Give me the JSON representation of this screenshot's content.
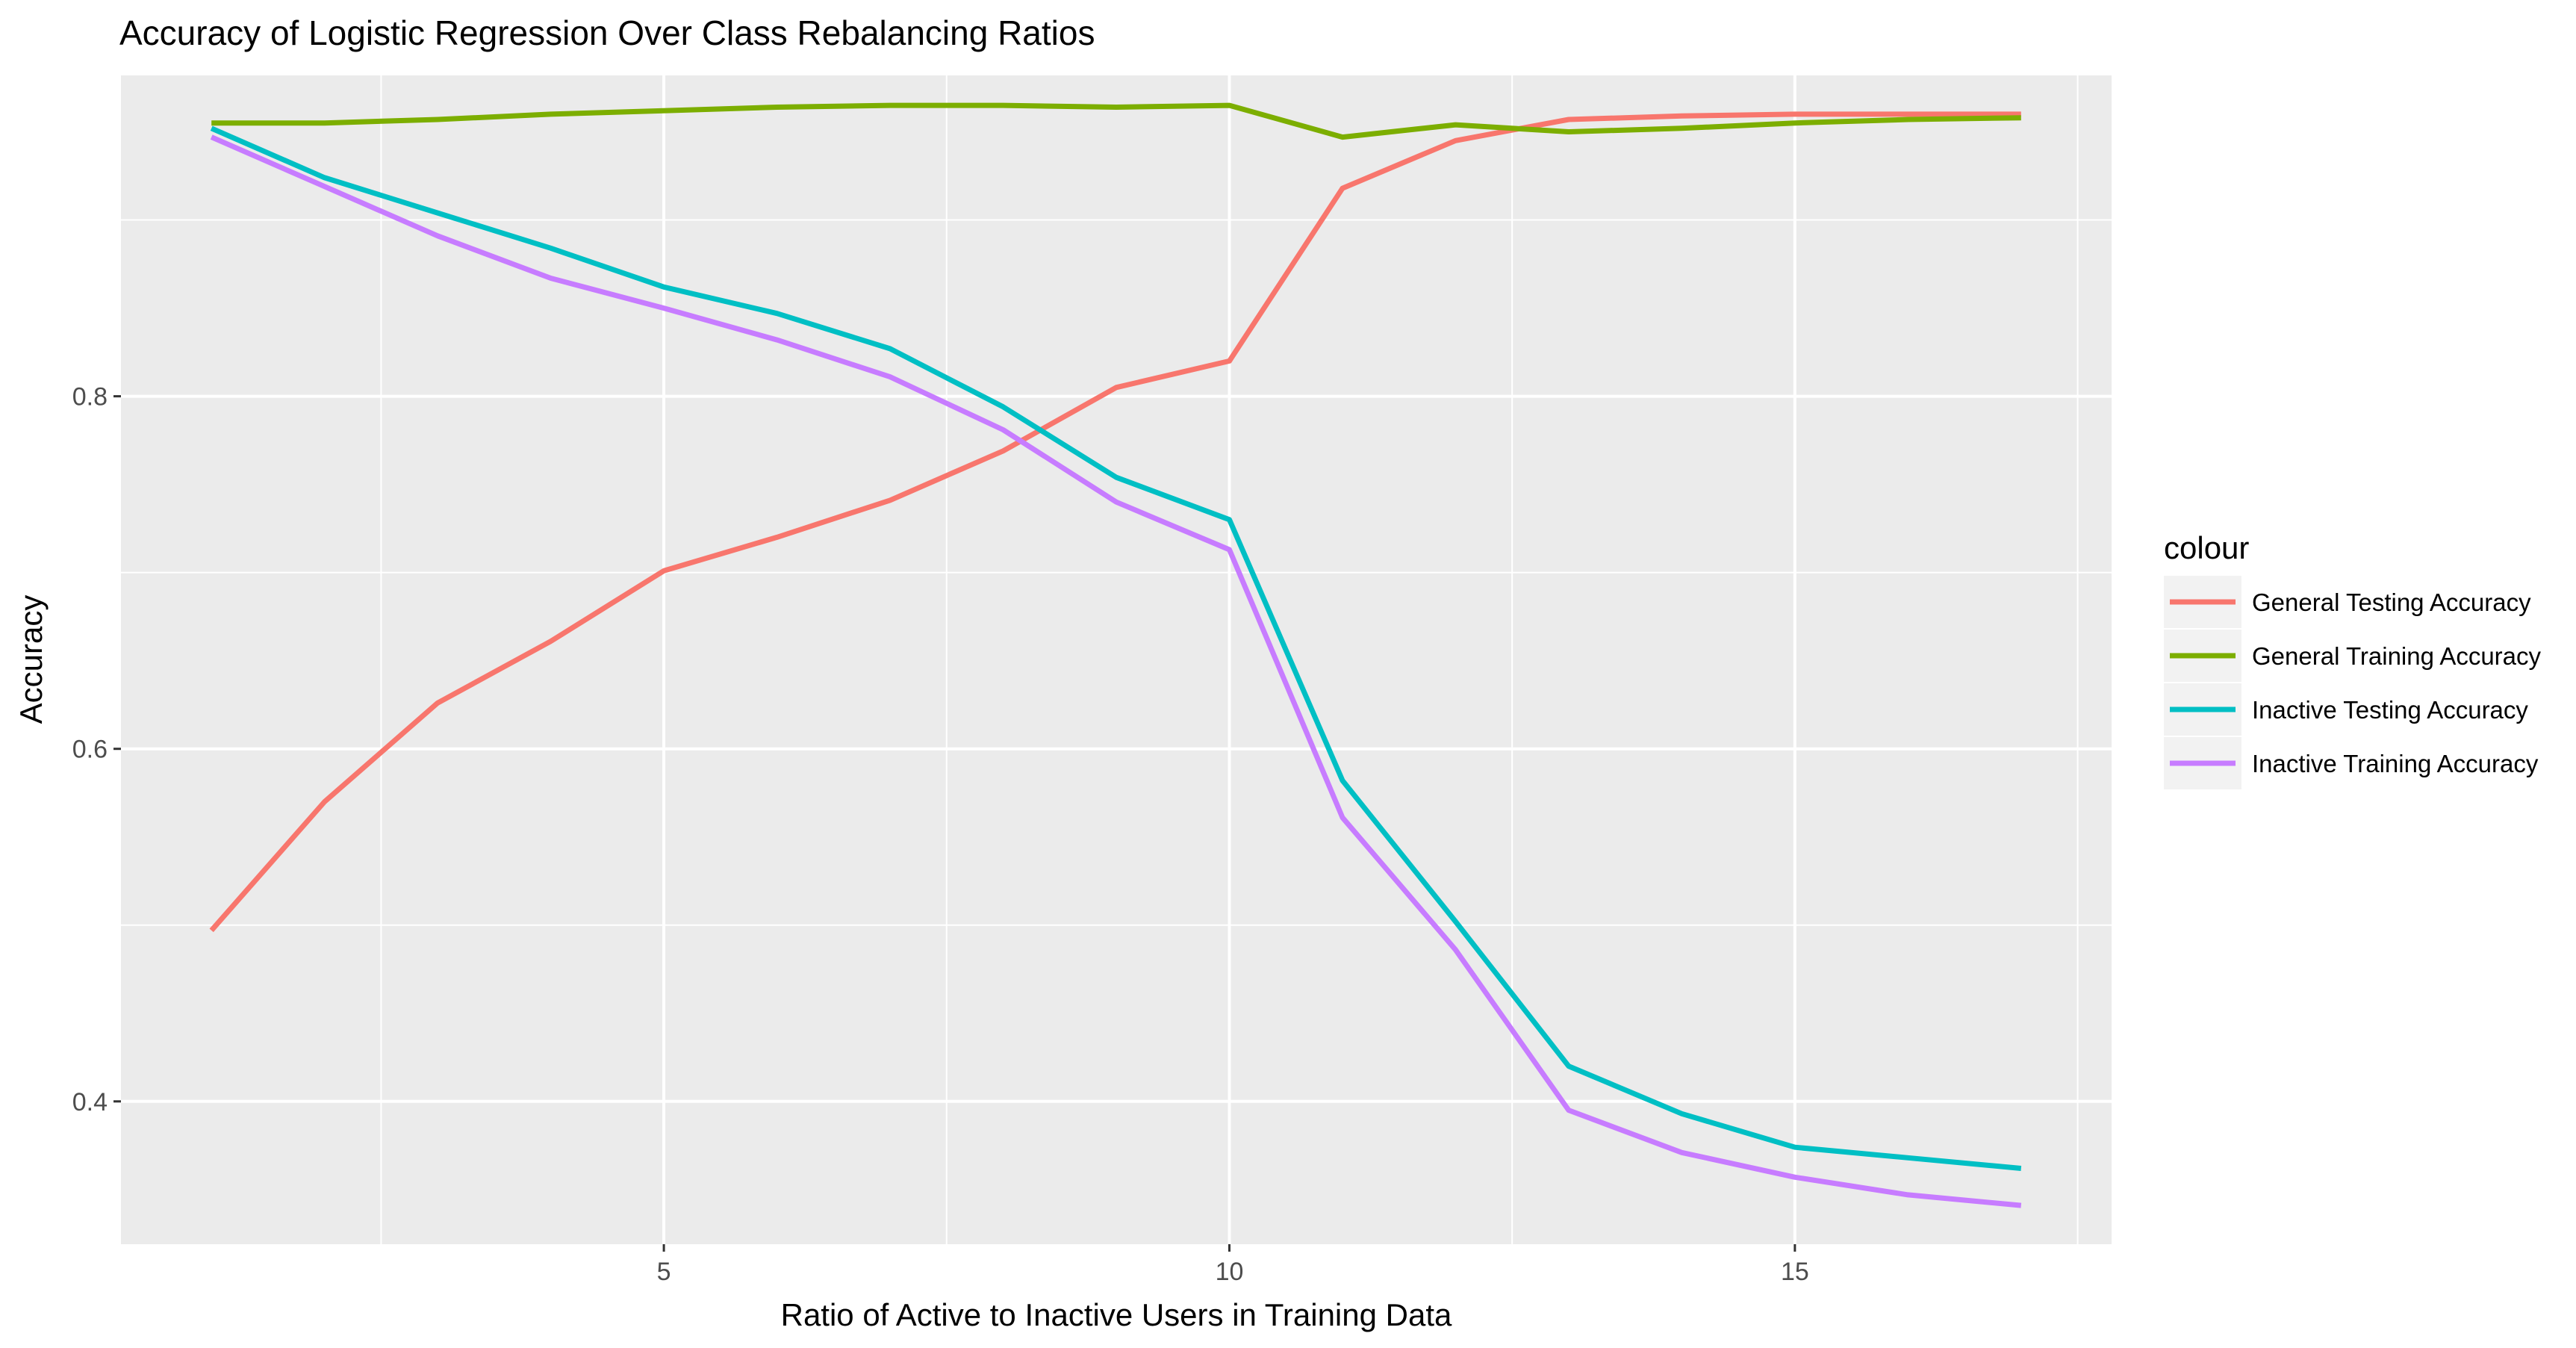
{
  "chart_data": {
    "type": "line",
    "title": "Accuracy of Logistic Regression Over Class Rebalancing Ratios",
    "xlabel": "Ratio of Active to Inactive Users in Training Data",
    "ylabel": "Accuracy",
    "xlim": [
      0.2,
      17.8
    ],
    "ylim": [
      0.319,
      0.982
    ],
    "x_ticks": [
      5,
      10,
      15
    ],
    "x_tick_labels": [
      "5",
      "10",
      "15"
    ],
    "y_ticks": [
      0.4,
      0.6,
      0.8
    ],
    "y_tick_labels": [
      "0.4",
      "0.6",
      "0.8"
    ],
    "grid": true,
    "legend": {
      "title": "colour",
      "placement": "right"
    },
    "x": [
      1,
      2,
      3,
      4,
      5,
      6,
      7,
      8,
      9,
      10,
      11,
      12,
      13,
      14,
      15,
      16,
      17
    ],
    "series": [
      {
        "name": "General Testing Accuracy",
        "color": "#F8766D",
        "values": [
          0.497,
          0.57,
          0.626,
          0.661,
          0.701,
          0.72,
          0.741,
          0.769,
          0.805,
          0.82,
          0.918,
          0.945,
          0.957,
          0.959,
          0.96,
          0.96,
          0.96
        ]
      },
      {
        "name": "General Training Accuracy",
        "color": "#7CAE00",
        "values": [
          0.955,
          0.955,
          0.957,
          0.96,
          0.962,
          0.964,
          0.965,
          0.965,
          0.964,
          0.965,
          0.947,
          0.954,
          0.95,
          0.952,
          0.955,
          0.957,
          0.958
        ]
      },
      {
        "name": "Inactive Testing Accuracy",
        "color": "#00BFC4",
        "values": [
          0.952,
          0.924,
          0.904,
          0.884,
          0.862,
          0.847,
          0.827,
          0.794,
          0.754,
          0.73,
          0.582,
          0.502,
          0.42,
          0.393,
          0.374,
          0.368,
          0.362
        ]
      },
      {
        "name": "Inactive Training Accuracy",
        "color": "#C77CFF",
        "values": [
          0.947,
          0.919,
          0.891,
          0.867,
          0.85,
          0.832,
          0.811,
          0.781,
          0.74,
          0.713,
          0.561,
          0.486,
          0.395,
          0.371,
          0.357,
          0.347,
          0.341
        ]
      }
    ]
  }
}
